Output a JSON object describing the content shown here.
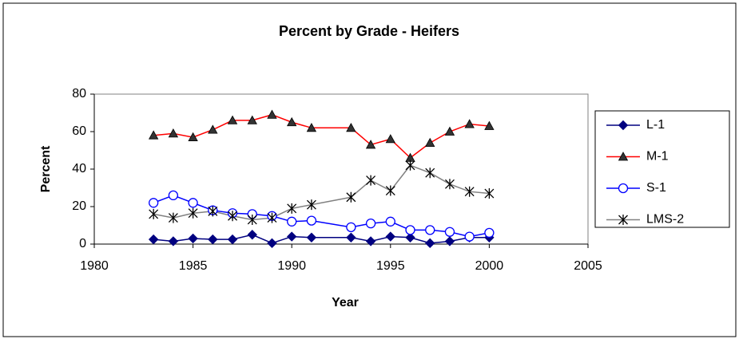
{
  "chart_data": {
    "type": "line",
    "title": "Percent by Grade - Heifers",
    "x_label": "Year",
    "y_label": "Percent",
    "x": [
      1983,
      1984,
      1985,
      1986,
      1987,
      1988,
      1989,
      1990,
      1991,
      1993,
      1994,
      1995,
      1996,
      1997,
      1998,
      1999,
      2000
    ],
    "series": [
      {
        "name": "L-1",
        "color": "#000080",
        "marker": "diamond",
        "marker_color": "#000080",
        "values": [
          2.5,
          1.5,
          3,
          2.5,
          2.5,
          5,
          0.5,
          4,
          3.5,
          3.5,
          1.5,
          4,
          3.5,
          0.5,
          1.5,
          3.5,
          3.5
        ]
      },
      {
        "name": "M-1",
        "color": "#ff0000",
        "marker": "triangle",
        "marker_color": "#333333",
        "values": [
          58,
          59,
          57,
          61,
          66,
          66,
          69,
          65,
          62,
          62,
          53,
          56,
          46,
          54,
          60,
          64,
          63
        ]
      },
      {
        "name": "S-1",
        "color": "#0000ff",
        "marker": "circle",
        "marker_color": "#0000ff",
        "values": [
          22,
          26,
          22,
          18,
          16.5,
          16,
          15,
          12,
          12.5,
          9,
          11,
          12,
          7.5,
          7.5,
          6.5,
          4,
          6
        ]
      },
      {
        "name": "LMS-2",
        "color": "#808080",
        "marker": "asterisk",
        "marker_color": "#000000",
        "values": [
          16,
          14,
          16.5,
          17.5,
          15,
          13,
          14,
          19,
          21,
          25,
          34,
          28.5,
          42,
          38,
          32,
          28,
          27
        ]
      }
    ],
    "xlim": [
      1980,
      2005
    ],
    "xticks": [
      1980,
      1985,
      1990,
      1995,
      2000,
      2005
    ],
    "ylim": [
      0,
      80
    ],
    "yticks": [
      0,
      20,
      40,
      60,
      80
    ],
    "grid": false,
    "legend": "right"
  }
}
